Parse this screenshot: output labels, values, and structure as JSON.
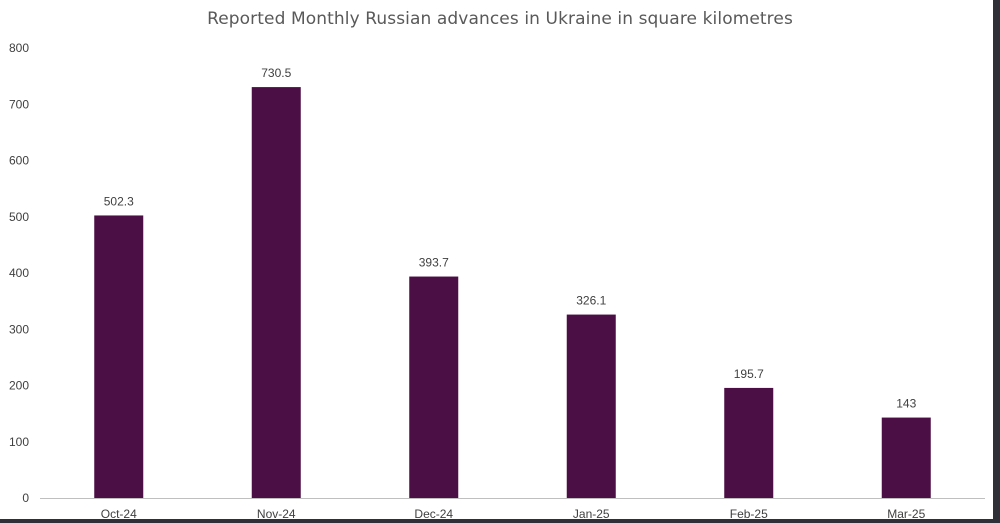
{
  "chart_data": {
    "type": "bar",
    "title": "Reported Monthly Russian advances in Ukraine in square kilometres",
    "categories": [
      "Oct-24",
      "Nov-24",
      "Dec-24",
      "Jan-25",
      "Feb-25",
      "Mar-25"
    ],
    "values": [
      502.3,
      730.5,
      393.7,
      326.1,
      195.7,
      143
    ],
    "data_labels": [
      "502.3",
      "730.5",
      "393.7",
      "326.1",
      "195.7",
      "143"
    ],
    "y_ticks": [
      "0",
      "100",
      "200",
      "300",
      "400",
      "500",
      "600",
      "700",
      "800"
    ],
    "ylim": [
      0,
      800
    ],
    "grid": false,
    "legend": "none",
    "bar_color": "#4b0f45",
    "axis_color": "#bfbfbf"
  }
}
